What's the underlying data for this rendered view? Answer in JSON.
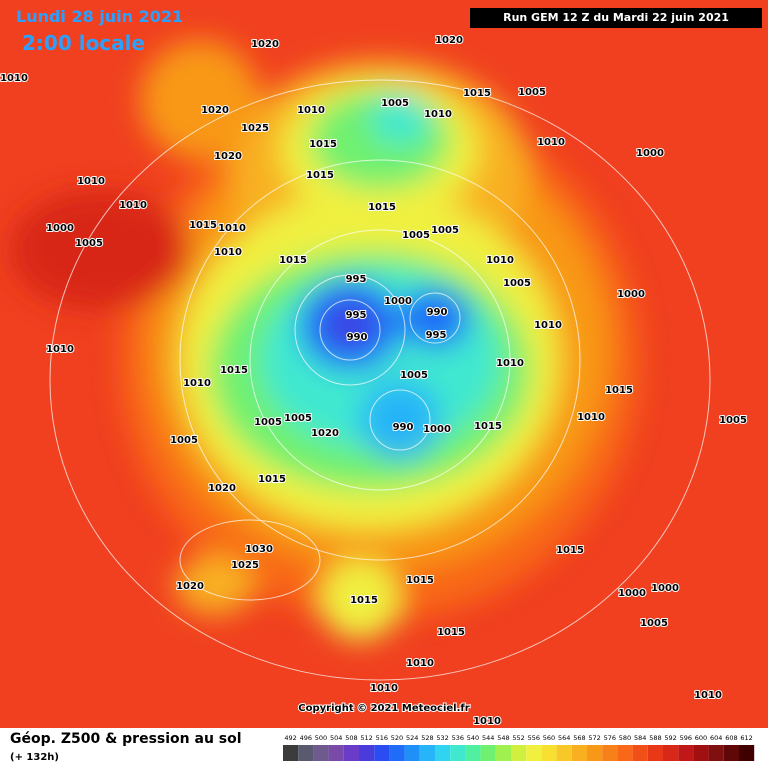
{
  "header": {
    "date": "Lundi 28 juin 2021",
    "time": "2:00 locale",
    "run": "Run GEM 12 Z du Mardi 22 juin 2021"
  },
  "footer": {
    "title": "Géop. Z500 & pression au sol",
    "lead": "(+ 132h)",
    "copyright": "Copyright © 2021 Meteociel.fr"
  },
  "colorbar": {
    "labels": [
      492,
      496,
      500,
      504,
      508,
      512,
      516,
      520,
      524,
      528,
      532,
      536,
      540,
      544,
      548,
      552,
      556,
      560,
      564,
      568,
      572,
      576,
      580,
      584,
      588,
      592,
      596,
      600,
      604,
      608,
      612
    ],
    "colors": [
      "#3c3c3c",
      "#5a5a6e",
      "#6e5a8c",
      "#7a4aa8",
      "#6a3cc8",
      "#4a3cdc",
      "#2a4cf0",
      "#1e6cf8",
      "#2090f8",
      "#28b4f8",
      "#30d4f0",
      "#40e8d0",
      "#50f0a0",
      "#70f070",
      "#a0f050",
      "#d0f040",
      "#f0f040",
      "#f8e030",
      "#f8c828",
      "#f8b020",
      "#f89818",
      "#f88018",
      "#f86818",
      "#f05018",
      "#e83818",
      "#d82818",
      "#c01818",
      "#a01010",
      "#801010",
      "#600808",
      "#400000"
    ]
  },
  "isobars": [
    1020,
    1020,
    1010,
    1015,
    1005,
    1005,
    1010,
    1010,
    1020,
    1025,
    1020,
    1015,
    1010,
    1000,
    1015,
    1015,
    1010,
    1010,
    1005,
    1005,
    1000,
    1005,
    1015,
    1010,
    1010,
    1015,
    995,
    1010,
    1005,
    1000,
    990,
    995,
    990,
    995,
    1000,
    1010,
    1010,
    1010,
    1015,
    1010,
    1005,
    1015,
    1010,
    1005,
    1005,
    1020,
    990,
    1000,
    1015,
    1005,
    1015,
    1020,
    1030,
    1025,
    1020,
    1015,
    1015,
    1015,
    1000,
    1000,
    1005,
    1015,
    1010,
    1010,
    1010,
    1010,
    1005
  ]
}
